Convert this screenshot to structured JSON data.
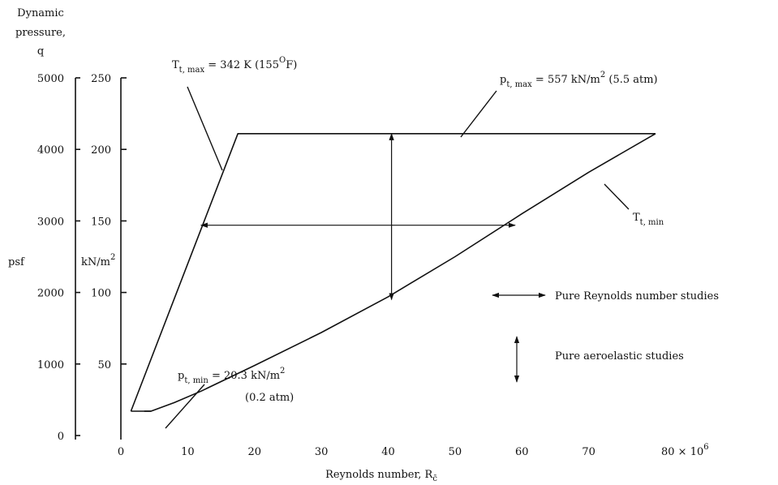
{
  "chart_data": {
    "type": "line",
    "x_axis": {
      "label_main": "Reynolds number, R",
      "label_sub": "c̄",
      "range": [
        0,
        80
      ],
      "ticks": [
        "0",
        "10",
        "20",
        "30",
        "40",
        "50",
        "60",
        "70"
      ],
      "last_tick": "80 × 10",
      "last_tick_exp": "6"
    },
    "y_axis_inner": {
      "unit_main": "kN/m",
      "unit_exp": "2",
      "range": [
        0,
        250
      ],
      "ticks": [
        "50",
        "100",
        "150",
        "200",
        "250"
      ]
    },
    "y_axis_outer": {
      "label_lines": [
        "Dynamic",
        "pressure,",
        "q"
      ],
      "unit": "psf",
      "range": [
        0,
        5000
      ],
      "ticks": [
        "0",
        "1000",
        "2000",
        "3000",
        "4000",
        "5000"
      ]
    },
    "series": [
      {
        "x": [
          1.5,
          17.5,
          80
        ],
        "y": [
          17,
          211,
          211
        ]
      },
      {
        "x": [
          1.5,
          4.5,
          8,
          12,
          20,
          30,
          40,
          50,
          60,
          70,
          80
        ],
        "y": [
          17,
          17,
          23,
          31,
          49,
          72,
          97,
          125,
          155,
          184,
          211
        ]
      },
      {
        "x": [
          4.5,
          3.5
        ],
        "y": [
          17,
          17
        ]
      }
    ],
    "annotations": {
      "tt_max": {
        "main": "T",
        "sub": "t, max",
        "rest": " = 342 K (155",
        "sup": "O",
        "tail": "F)"
      },
      "pt_max": {
        "main": "p",
        "sub": "t, max",
        "rest": " = 557 kN/m",
        "sup": "2",
        "tail": " (5.5 atm)"
      },
      "tt_min": {
        "main": "T",
        "sub": "t, min"
      },
      "pt_min": {
        "main": "p",
        "sub": "t, min",
        "rest": " = 20.3 kN/m",
        "sup": "2",
        "line2": "(0.2 atm)"
      },
      "reynolds_arrow": {
        "from_x": 12,
        "to_x": 59,
        "y": 147
      },
      "aeroelastic_arrow": {
        "x": 40.5,
        "from_y": 95,
        "to_y": 211
      }
    },
    "legend": {
      "placement": "right",
      "items": [
        {
          "symbol": "horizontal-double-arrow",
          "label": "Pure Reynolds number studies"
        },
        {
          "symbol": "vertical-double-arrow",
          "label": "Pure aeroelastic studies"
        }
      ]
    }
  }
}
